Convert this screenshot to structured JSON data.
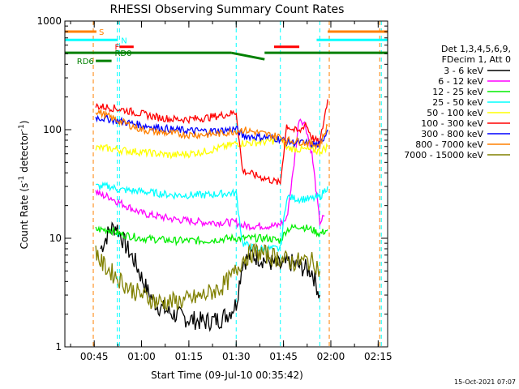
{
  "chart_data": {
    "type": "line",
    "title": "RHESSI Observing Summary Count Rates",
    "xlabel": "Start Time (09-Jul-10 00:35:42)",
    "ylabel": "Count Rate (s⁻¹ detector⁻¹)",
    "ylabel_main": "Count Rate (s",
    "ylabel_sup1": "-1",
    "ylabel_mid": " detector",
    "ylabel_sup2": "-1",
    "ylabel_end": ")",
    "yscale": "log",
    "ylim": [
      1,
      1000
    ],
    "xlim_min": [
      35.7,
      138
    ],
    "x_ticks": [
      {
        "t": 45,
        "label": "00:45"
      },
      {
        "t": 60,
        "label": "01:00"
      },
      {
        "t": 75,
        "label": "01:15"
      },
      {
        "t": 90,
        "label": "01:30"
      },
      {
        "t": 105,
        "label": "01:45"
      },
      {
        "t": 120,
        "label": "02:00"
      },
      {
        "t": 135,
        "label": "02:15"
      }
    ],
    "y_ticks": [
      {
        "v": 1,
        "label": "1"
      },
      {
        "v": 10,
        "label": "10"
      },
      {
        "v": 100,
        "label": "100"
      },
      {
        "v": 1000,
        "label": "1000"
      }
    ],
    "legend_header": [
      "Det 1,3,4,5,6,9,",
      "FDecim 1, Att 0"
    ],
    "series": [
      {
        "name": "3 - 6 keV",
        "color": "#000000",
        "x": [
          47,
          50,
          52,
          55,
          58,
          62,
          65,
          70,
          75,
          80,
          85,
          88,
          90,
          92,
          95,
          98,
          101,
          104,
          107,
          110,
          114,
          116.5
        ],
        "y": [
          8,
          12,
          13,
          8.5,
          6,
          3.2,
          2.4,
          2,
          1.8,
          1.7,
          1.8,
          2.1,
          2.5,
          6,
          7,
          6.5,
          6,
          5.5,
          6,
          5.5,
          5,
          3
        ]
      },
      {
        "name": "6 - 12 keV",
        "color": "#ff00ff",
        "x": [
          45.5,
          47,
          50,
          52,
          55,
          60,
          70,
          80,
          88,
          90,
          92,
          95,
          100,
          103,
          106,
          108,
          110,
          112,
          114,
          116.5,
          118
        ],
        "y": [
          27,
          25,
          24,
          22,
          20,
          17,
          15,
          14,
          14,
          14,
          13,
          13,
          13,
          13,
          15,
          40,
          130,
          110,
          60,
          14,
          16
        ]
      },
      {
        "name": "12 - 25 keV",
        "color": "#00ee00",
        "x": [
          45.5,
          50,
          53,
          60,
          70,
          80,
          88,
          90,
          92,
          100,
          104,
          106,
          110,
          114,
          116.5,
          119
        ],
        "y": [
          12,
          12,
          11,
          10,
          9.5,
          9.5,
          10,
          10,
          10,
          10,
          9.5,
          12,
          13,
          12,
          11,
          12
        ]
      },
      {
        "name": "25 - 50 keV",
        "color": "#00ffff",
        "x": [
          45.5,
          50,
          53,
          60,
          70,
          80,
          88,
          90,
          92,
          96,
          100,
          104,
          106,
          110,
          114,
          116.5,
          119
        ],
        "y": [
          30,
          30,
          28,
          27,
          25,
          25,
          26,
          26,
          9,
          8,
          8,
          8,
          24,
          23,
          23,
          24,
          30
        ]
      },
      {
        "name": "50 - 100 keV",
        "color": "#ffff00",
        "x": [
          45.5,
          50,
          53,
          60,
          65,
          70,
          75,
          80,
          85,
          88,
          90,
          92,
          96,
          100,
          104,
          106,
          110,
          114,
          116.5,
          119
        ],
        "y": [
          68,
          67,
          65,
          62,
          60,
          58,
          60,
          63,
          68,
          72,
          75,
          75,
          76,
          78,
          80,
          68,
          66,
          65,
          63,
          70
        ]
      },
      {
        "name": "100 - 300 keV",
        "color": "#ff0000",
        "x": [
          45.5,
          50,
          53,
          60,
          65,
          70,
          75,
          80,
          85,
          88,
          90,
          92,
          96,
          100,
          104,
          106,
          108,
          110,
          112,
          114,
          116.5,
          119
        ],
        "y": [
          165,
          160,
          155,
          140,
          130,
          125,
          125,
          128,
          135,
          140,
          145,
          42,
          38,
          35,
          32,
          110,
          100,
          95,
          115,
          85,
          75,
          190
        ]
      },
      {
        "name": "300 - 800 keV",
        "color": "#0000ff",
        "x": [
          45.5,
          50,
          53,
          60,
          65,
          70,
          75,
          80,
          85,
          88,
          90,
          92,
          96,
          100,
          104,
          106,
          108,
          110,
          112,
          114,
          116.5,
          119
        ],
        "y": [
          130,
          125,
          120,
          110,
          105,
          100,
          98,
          97,
          98,
          100,
          102,
          88,
          86,
          85,
          82,
          78,
          76,
          76,
          75,
          74,
          72,
          100
        ]
      },
      {
        "name": "800 - 7000 keV",
        "color": "#ff8000",
        "x": [
          45.5,
          50,
          53,
          60,
          65,
          70,
          75,
          80,
          85,
          88,
          90,
          92,
          96,
          100,
          104,
          106,
          110,
          114,
          116.5,
          119
        ],
        "y": [
          150,
          130,
          120,
          100,
          95,
          92,
          90,
          90,
          92,
          95,
          98,
          100,
          95,
          90,
          86,
          80,
          78,
          74,
          72,
          110
        ]
      },
      {
        "name": "7000 - 15000 keV",
        "color": "#808000",
        "x": [
          45.5,
          47,
          50,
          53,
          56,
          60,
          65,
          70,
          75,
          80,
          85,
          88,
          90,
          92,
          96,
          100,
          104,
          108,
          112,
          115,
          116.5
        ],
        "y": [
          8,
          6,
          5,
          4.2,
          3.5,
          3,
          2.6,
          2.6,
          2.7,
          3,
          3.5,
          4.2,
          5,
          6.5,
          7.5,
          7,
          6.5,
          6,
          6.2,
          6,
          5
        ]
      }
    ],
    "state_bars": [
      {
        "label": "S",
        "color": "#ff8000",
        "segments": [
          [
            35.7,
            45.7
          ],
          [
            119,
            138
          ]
        ],
        "value": 800,
        "label_at": 46.5
      },
      {
        "label": "N",
        "color": "#00ffff",
        "segments": [
          [
            35.7,
            52.5
          ],
          [
            115.5,
            138
          ]
        ],
        "value": 670,
        "label_at": 53.5
      },
      {
        "label": "F",
        "color": "#ff0000",
        "segments": [
          [
            53,
            57.5
          ],
          [
            102,
            110
          ]
        ],
        "value": 580,
        "label_at": 51.5
      },
      {
        "label": "RD0",
        "color": "#008000",
        "segments": [
          [
            35.7,
            88.5
          ],
          [
            88.5,
            99
          ],
          [
            99,
            138
          ]
        ],
        "value": 510,
        "label_at": 51.5
      },
      {
        "label": "RD6",
        "color": "#008000",
        "segments": [
          [
            45.5,
            50.5
          ]
        ],
        "value": 430,
        "label_at": 39.5
      }
    ],
    "vlines": [
      {
        "t": 44.7,
        "color": "#ff8000"
      },
      {
        "t": 52.3,
        "color": "#00ffff"
      },
      {
        "t": 53.0,
        "color": "#00ffff"
      },
      {
        "t": 90.0,
        "color": "#00ffff"
      },
      {
        "t": 104.0,
        "color": "#00ffff"
      },
      {
        "t": 116.5,
        "color": "#00ffff"
      },
      {
        "t": 119.5,
        "color": "#ff8000"
      },
      {
        "t": 135.5,
        "color": "#ff8000"
      },
      {
        "t": 136.0,
        "color": "#00ffff"
      }
    ],
    "footer_date": "15-Oct-2021 07:07"
  }
}
